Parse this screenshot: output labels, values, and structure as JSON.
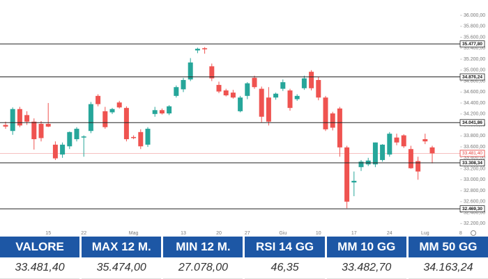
{
  "chart_data": {
    "type": "candlestick",
    "categories": [
      null,
      null,
      null,
      null,
      null,
      null,
      "15",
      null,
      null,
      null,
      null,
      "22",
      null,
      null,
      null,
      null,
      null,
      null,
      "Mag",
      null,
      null,
      null,
      null,
      null,
      null,
      "13",
      null,
      null,
      null,
      null,
      "20",
      null,
      null,
      null,
      "27",
      null,
      null,
      null,
      null,
      "Giu",
      null,
      null,
      null,
      null,
      "10",
      null,
      null,
      null,
      null,
      "17",
      null,
      null,
      null,
      null,
      "24",
      null,
      null,
      null,
      null,
      "Lug",
      null,
      null,
      null,
      null,
      "8",
      null
    ],
    "open": [
      34000,
      33890,
      34290,
      34180,
      34060,
      34020,
      34020,
      33640,
      33460,
      33610,
      33740,
      33770,
      33890,
      34530,
      34250,
      34230,
      34410,
      34310,
      33780,
      33870,
      33640,
      34200,
      34270,
      34210,
      34530,
      34650,
      34830,
      35360,
      35400,
      35070,
      34730,
      34630,
      34590,
      34250,
      34530,
      34860,
      34660,
      34500,
      34500,
      34660,
      34630,
      34470,
      34670,
      34970,
      34820,
      34500,
      34210,
      34300,
      33590,
      32950,
      33230,
      33280,
      33280,
      33360,
      33460,
      33770,
      33810,
      33560,
      33340,
      33740,
      33590,
      null,
      null,
      null,
      null,
      null
    ],
    "high": [
      34060,
      34320,
      34330,
      34250,
      34120,
      34070,
      34400,
      33700,
      33680,
      33880,
      33960,
      33810,
      34420,
      34560,
      34330,
      34310,
      34440,
      34340,
      33810,
      33920,
      33960,
      34330,
      34300,
      34360,
      34720,
      34860,
      35220,
      35410,
      35420,
      35120,
      34790,
      34660,
      34640,
      34530,
      34780,
      34900,
      34700,
      34690,
      34590,
      34830,
      34660,
      34560,
      34900,
      35000,
      34880,
      34530,
      34240,
      34330,
      33620,
      33150,
      33360,
      33400,
      33680,
      33650,
      33870,
      33840,
      33830,
      33620,
      33420,
      33840,
      33620,
      null,
      null,
      null,
      null,
      null
    ],
    "low": [
      33930,
      33820,
      33960,
      34000,
      33550,
      33700,
      33960,
      33360,
      33400,
      33560,
      33700,
      33420,
      33850,
      34340,
      33930,
      34200,
      34300,
      33700,
      33740,
      33560,
      33600,
      34150,
      34190,
      34180,
      34500,
      34600,
      34800,
      35310,
      35300,
      34800,
      34580,
      34520,
      34480,
      34230,
      34470,
      34660,
      34050,
      33990,
      34460,
      34620,
      34260,
      34440,
      34640,
      34630,
      34450,
      33890,
      33900,
      33420,
      32480,
      32700,
      33160,
      33250,
      33230,
      33330,
      33420,
      33630,
      33580,
      33200,
      33000,
      33650,
      33300,
      null,
      null,
      null,
      null,
      null
    ],
    "close": [
      33970,
      34290,
      33990,
      34060,
      33740,
      33760,
      33970,
      33390,
      33640,
      33870,
      33930,
      33790,
      34380,
      34380,
      33960,
      34290,
      34320,
      33740,
      33760,
      33610,
      33930,
      34270,
      34210,
      34340,
      34690,
      34820,
      35140,
      35390,
      35380,
      34850,
      34610,
      34540,
      34500,
      34500,
      34760,
      34690,
      34150,
      34060,
      34570,
      34780,
      34310,
      34530,
      34850,
      34670,
      34500,
      33920,
      33950,
      33590,
      32600,
      32980,
      33330,
      33350,
      33680,
      33640,
      33840,
      33680,
      33610,
      33210,
      33150,
      33700,
      33481.4,
      null,
      null,
      null,
      null,
      null
    ],
    "up_color": "#26a69a",
    "down_color": "#ef5350",
    "ylim": [
      32090,
      36280
    ],
    "yticks": [
      {
        "value": 32200,
        "label": "32.200,00"
      },
      {
        "value": 32400,
        "label": "32.400,00"
      },
      {
        "value": 32600,
        "label": "32.600,00"
      },
      {
        "value": 32800,
        "label": "32.800,00"
      },
      {
        "value": 33000,
        "label": "33.000,00"
      },
      {
        "value": 33200,
        "label": "33.200,00"
      },
      {
        "value": 33400,
        "label": "33.400,00"
      },
      {
        "value": 33600,
        "label": "33.600,00"
      },
      {
        "value": 33800,
        "label": "33.800,00"
      },
      {
        "value": 34000,
        "label": "34.000,00"
      },
      {
        "value": 34200,
        "label": "34.200,00"
      },
      {
        "value": 34400,
        "label": "34.400,00"
      },
      {
        "value": 34600,
        "label": "34.600,00"
      },
      {
        "value": 34800,
        "label": "34.800,00"
      },
      {
        "value": 35000,
        "label": "35.000,00"
      },
      {
        "value": 35200,
        "label": "35.200,00"
      },
      {
        "value": 35400,
        "label": "35.400,00"
      },
      {
        "value": 35600,
        "label": "35.600,00"
      },
      {
        "value": 35800,
        "label": "35.800,00"
      },
      {
        "value": 36000,
        "label": "36.000,00"
      }
    ],
    "levels": [
      {
        "value": 35477.8,
        "label": "35.477,80"
      },
      {
        "value": 34876.24,
        "label": "34.876,24"
      },
      {
        "value": 34041.86,
        "label": "34.041,86"
      },
      {
        "value": 33308.34,
        "label": "33.308,34"
      },
      {
        "value": 32469.3,
        "label": "32.469,30"
      }
    ],
    "price_line": {
      "value": 33481.4,
      "label": "33.481,40",
      "color": "#e53935"
    }
  },
  "table": {
    "headers": [
      "VALORE",
      "MAX 12 M.",
      "MIN 12 M.",
      "RSI 14 GG",
      "MM 10 GG",
      "MM 50 GG"
    ],
    "row": [
      "33.481,40",
      "35.474,00",
      "27.078,00",
      "46,35",
      "33.482,70",
      "34.163,24"
    ]
  }
}
